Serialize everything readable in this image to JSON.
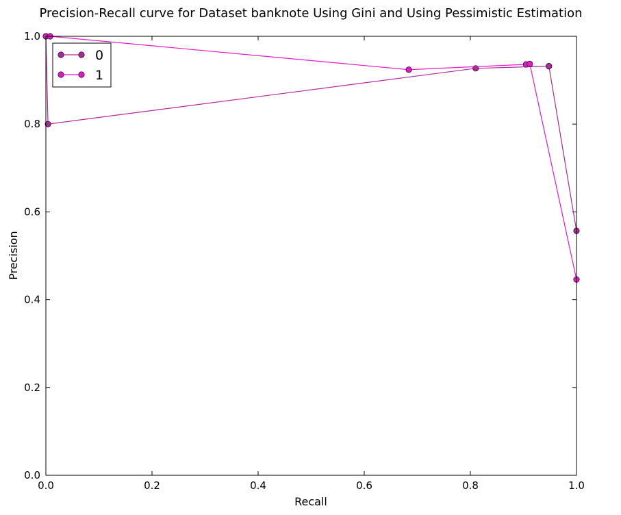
{
  "chart_data": {
    "type": "line",
    "title": "Precision-Recall curve for Dataset banknote Using Gini and Using Pessimistic Estimation",
    "xlabel": "Recall",
    "ylabel": "Precision",
    "xlim": [
      0.0,
      1.0
    ],
    "ylim": [
      0.0,
      1.0
    ],
    "xticks": [
      "0.0",
      "0.2",
      "0.4",
      "0.6",
      "0.8",
      "1.0"
    ],
    "yticks": [
      "0.0",
      "0.2",
      "0.4",
      "0.6",
      "0.8",
      "1.0"
    ],
    "grid": false,
    "legend_position": "top-left",
    "series": [
      {
        "name": "0",
        "color": "#b0279a",
        "x": [
          0.0,
          0.004,
          0.81,
          0.948,
          0.948,
          1.0
        ],
        "y": [
          1.0,
          0.8,
          0.927,
          0.932,
          0.932,
          0.557
        ]
      },
      {
        "name": "1",
        "color": "#e617c8",
        "x": [
          0.0,
          0.008,
          0.684,
          0.905,
          0.912,
          1.0
        ],
        "y": [
          1.0,
          1.0,
          0.924,
          0.936,
          0.937,
          0.446
        ]
      }
    ]
  }
}
